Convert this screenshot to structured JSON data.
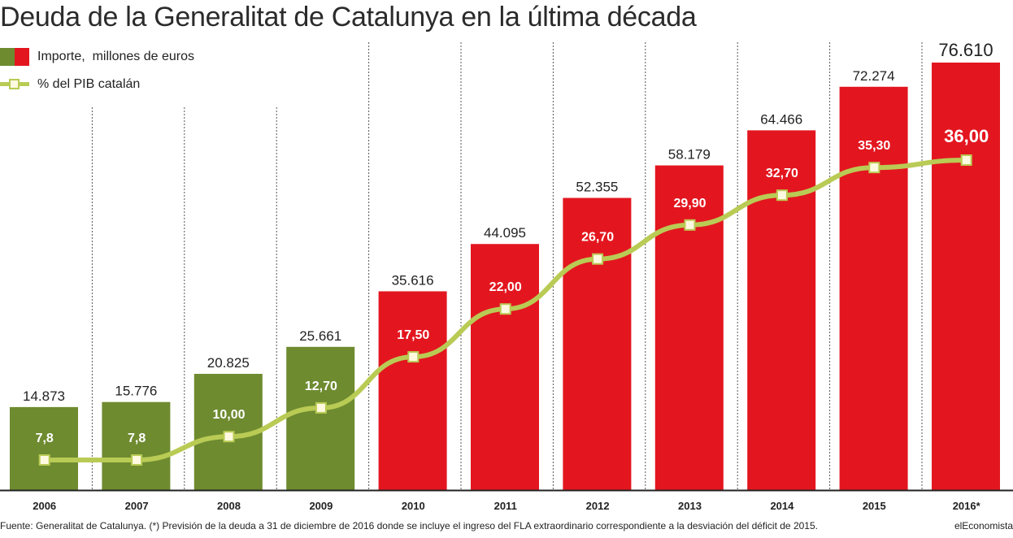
{
  "title": "Deuda de la Generalitat de Catalunya en la última década",
  "legend": {
    "bar_label": "Importe,  millones de euros",
    "line_label": "% del PIB catalán"
  },
  "colors": {
    "bar_past": "#6e8b30",
    "bar_recent": "#e3161f",
    "line": "#b9cb54",
    "marker_fill": "#fff9e0",
    "gridline": "#555555"
  },
  "footer": {
    "source": "Fuente: Generalitat de Catalunya. (*) Previsión de la deuda a 31 de diciembre de 2016 donde se incluye el ingreso del FLA extraordinario correspondiente a la desviación del déficit de 2015.",
    "brand": "elEconomista"
  },
  "chart_data": {
    "type": "bar",
    "categories": [
      "2006",
      "2007",
      "2008",
      "2009",
      "2010",
      "2011",
      "2012",
      "2013",
      "2014",
      "2015",
      "2016*"
    ],
    "series": [
      {
        "name": "Importe,  millones de euros",
        "type": "bar",
        "values": [
          14873,
          15776,
          20825,
          25661,
          35616,
          44095,
          52355,
          58179,
          64466,
          72274,
          76610
        ],
        "labels": [
          "14.873",
          "15.776",
          "20.825",
          "25.661",
          "35.616",
          "44.095",
          "52.355",
          "58.179",
          "64.466",
          "72.274",
          "76.610"
        ],
        "colors": [
          "#6e8b30",
          "#6e8b30",
          "#6e8b30",
          "#6e8b30",
          "#e3161f",
          "#e3161f",
          "#e3161f",
          "#e3161f",
          "#e3161f",
          "#e3161f",
          "#e3161f"
        ]
      },
      {
        "name": "% del PIB catalán",
        "type": "line",
        "values": [
          7.8,
          7.8,
          10.0,
          12.7,
          17.5,
          22.0,
          26.7,
          29.9,
          32.7,
          35.3,
          36.0
        ],
        "labels": [
          "7,8",
          "7,8",
          "10,00",
          "12,70",
          "17,50",
          "22,00",
          "26,70",
          "29,90",
          "32,70",
          "35,30",
          "36,00"
        ]
      }
    ],
    "bar_ylim": [
      0,
      76610
    ],
    "line_ylim": [
      7.8,
      36.0
    ],
    "grid": "vertical dashed separators between years",
    "legend_position": "top-left"
  }
}
